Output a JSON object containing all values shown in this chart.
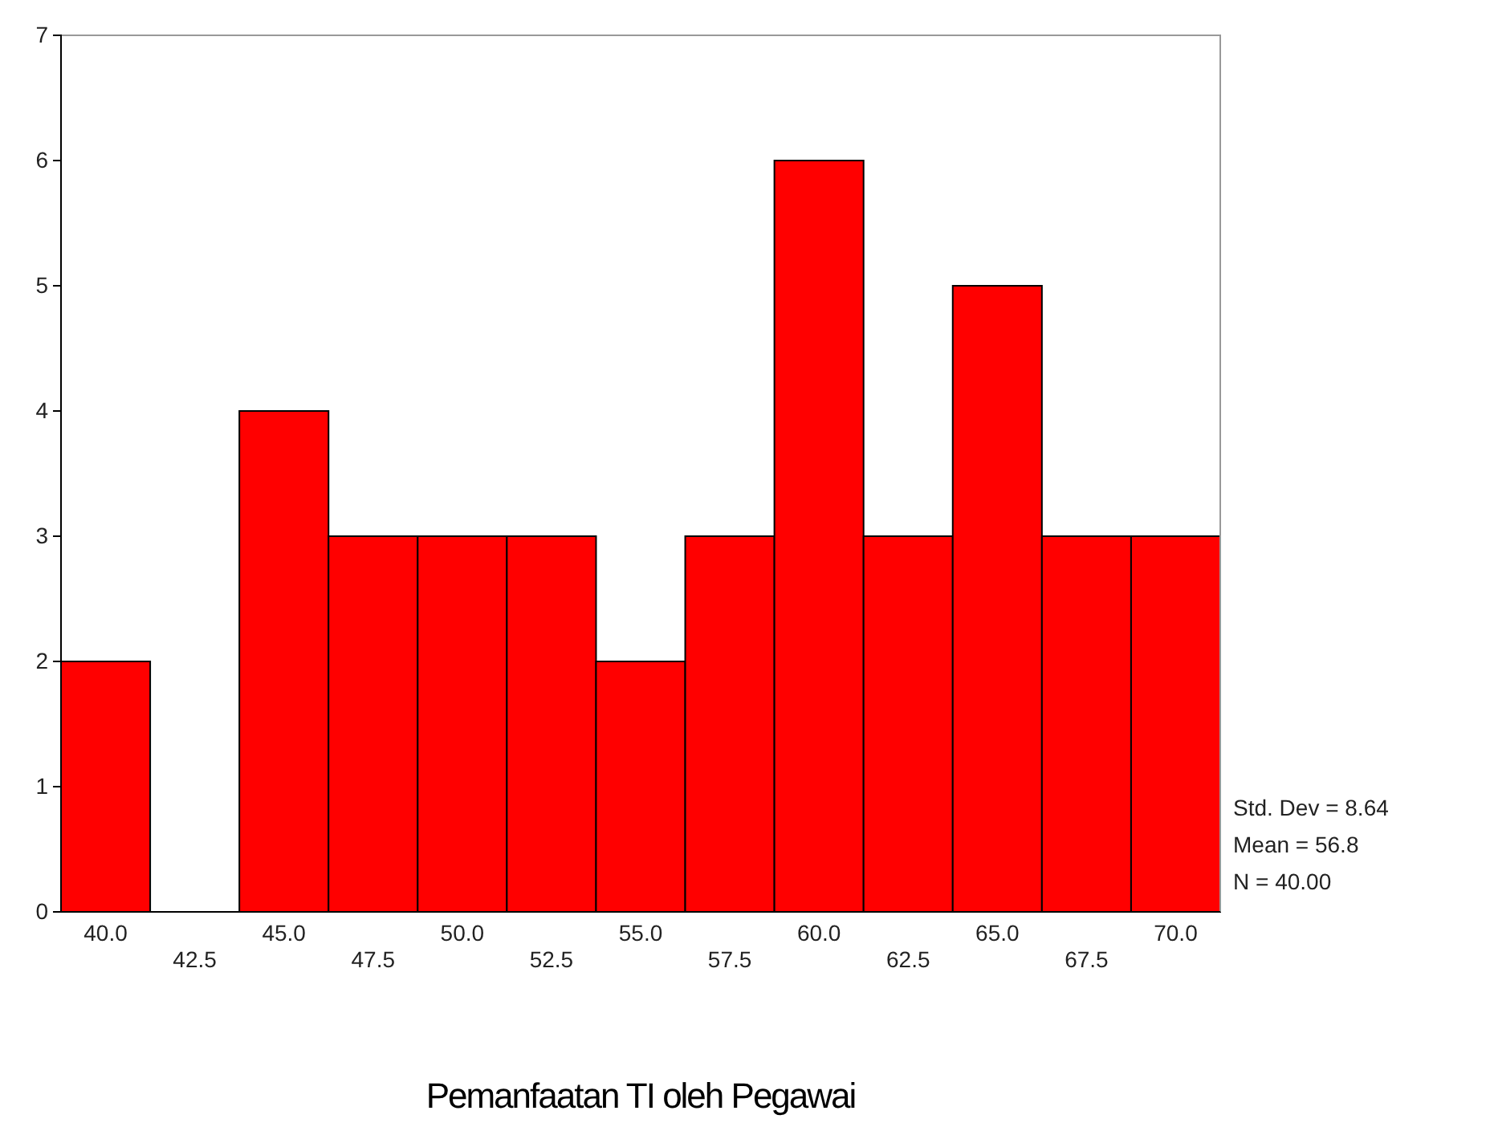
{
  "chart_data": {
    "type": "bar",
    "xlabel": "Pemanfaatan TI oleh Pegawai",
    "categories": [
      "40.0",
      "42.5",
      "45.0",
      "47.5",
      "50.0",
      "52.5",
      "55.0",
      "57.5",
      "60.0",
      "62.5",
      "65.0",
      "67.5",
      "70.0"
    ],
    "values": [
      2,
      0,
      4,
      3,
      3,
      3,
      2,
      3,
      6,
      3,
      5,
      3,
      3
    ],
    "color": "#ff0000",
    "ylim": [
      0,
      7
    ],
    "yticks": [
      0,
      1,
      2,
      3,
      4,
      5,
      6,
      7
    ],
    "annotations": [
      "Std. Dev = 8.64",
      "Mean = 56.8",
      "N = 40.00"
    ]
  }
}
